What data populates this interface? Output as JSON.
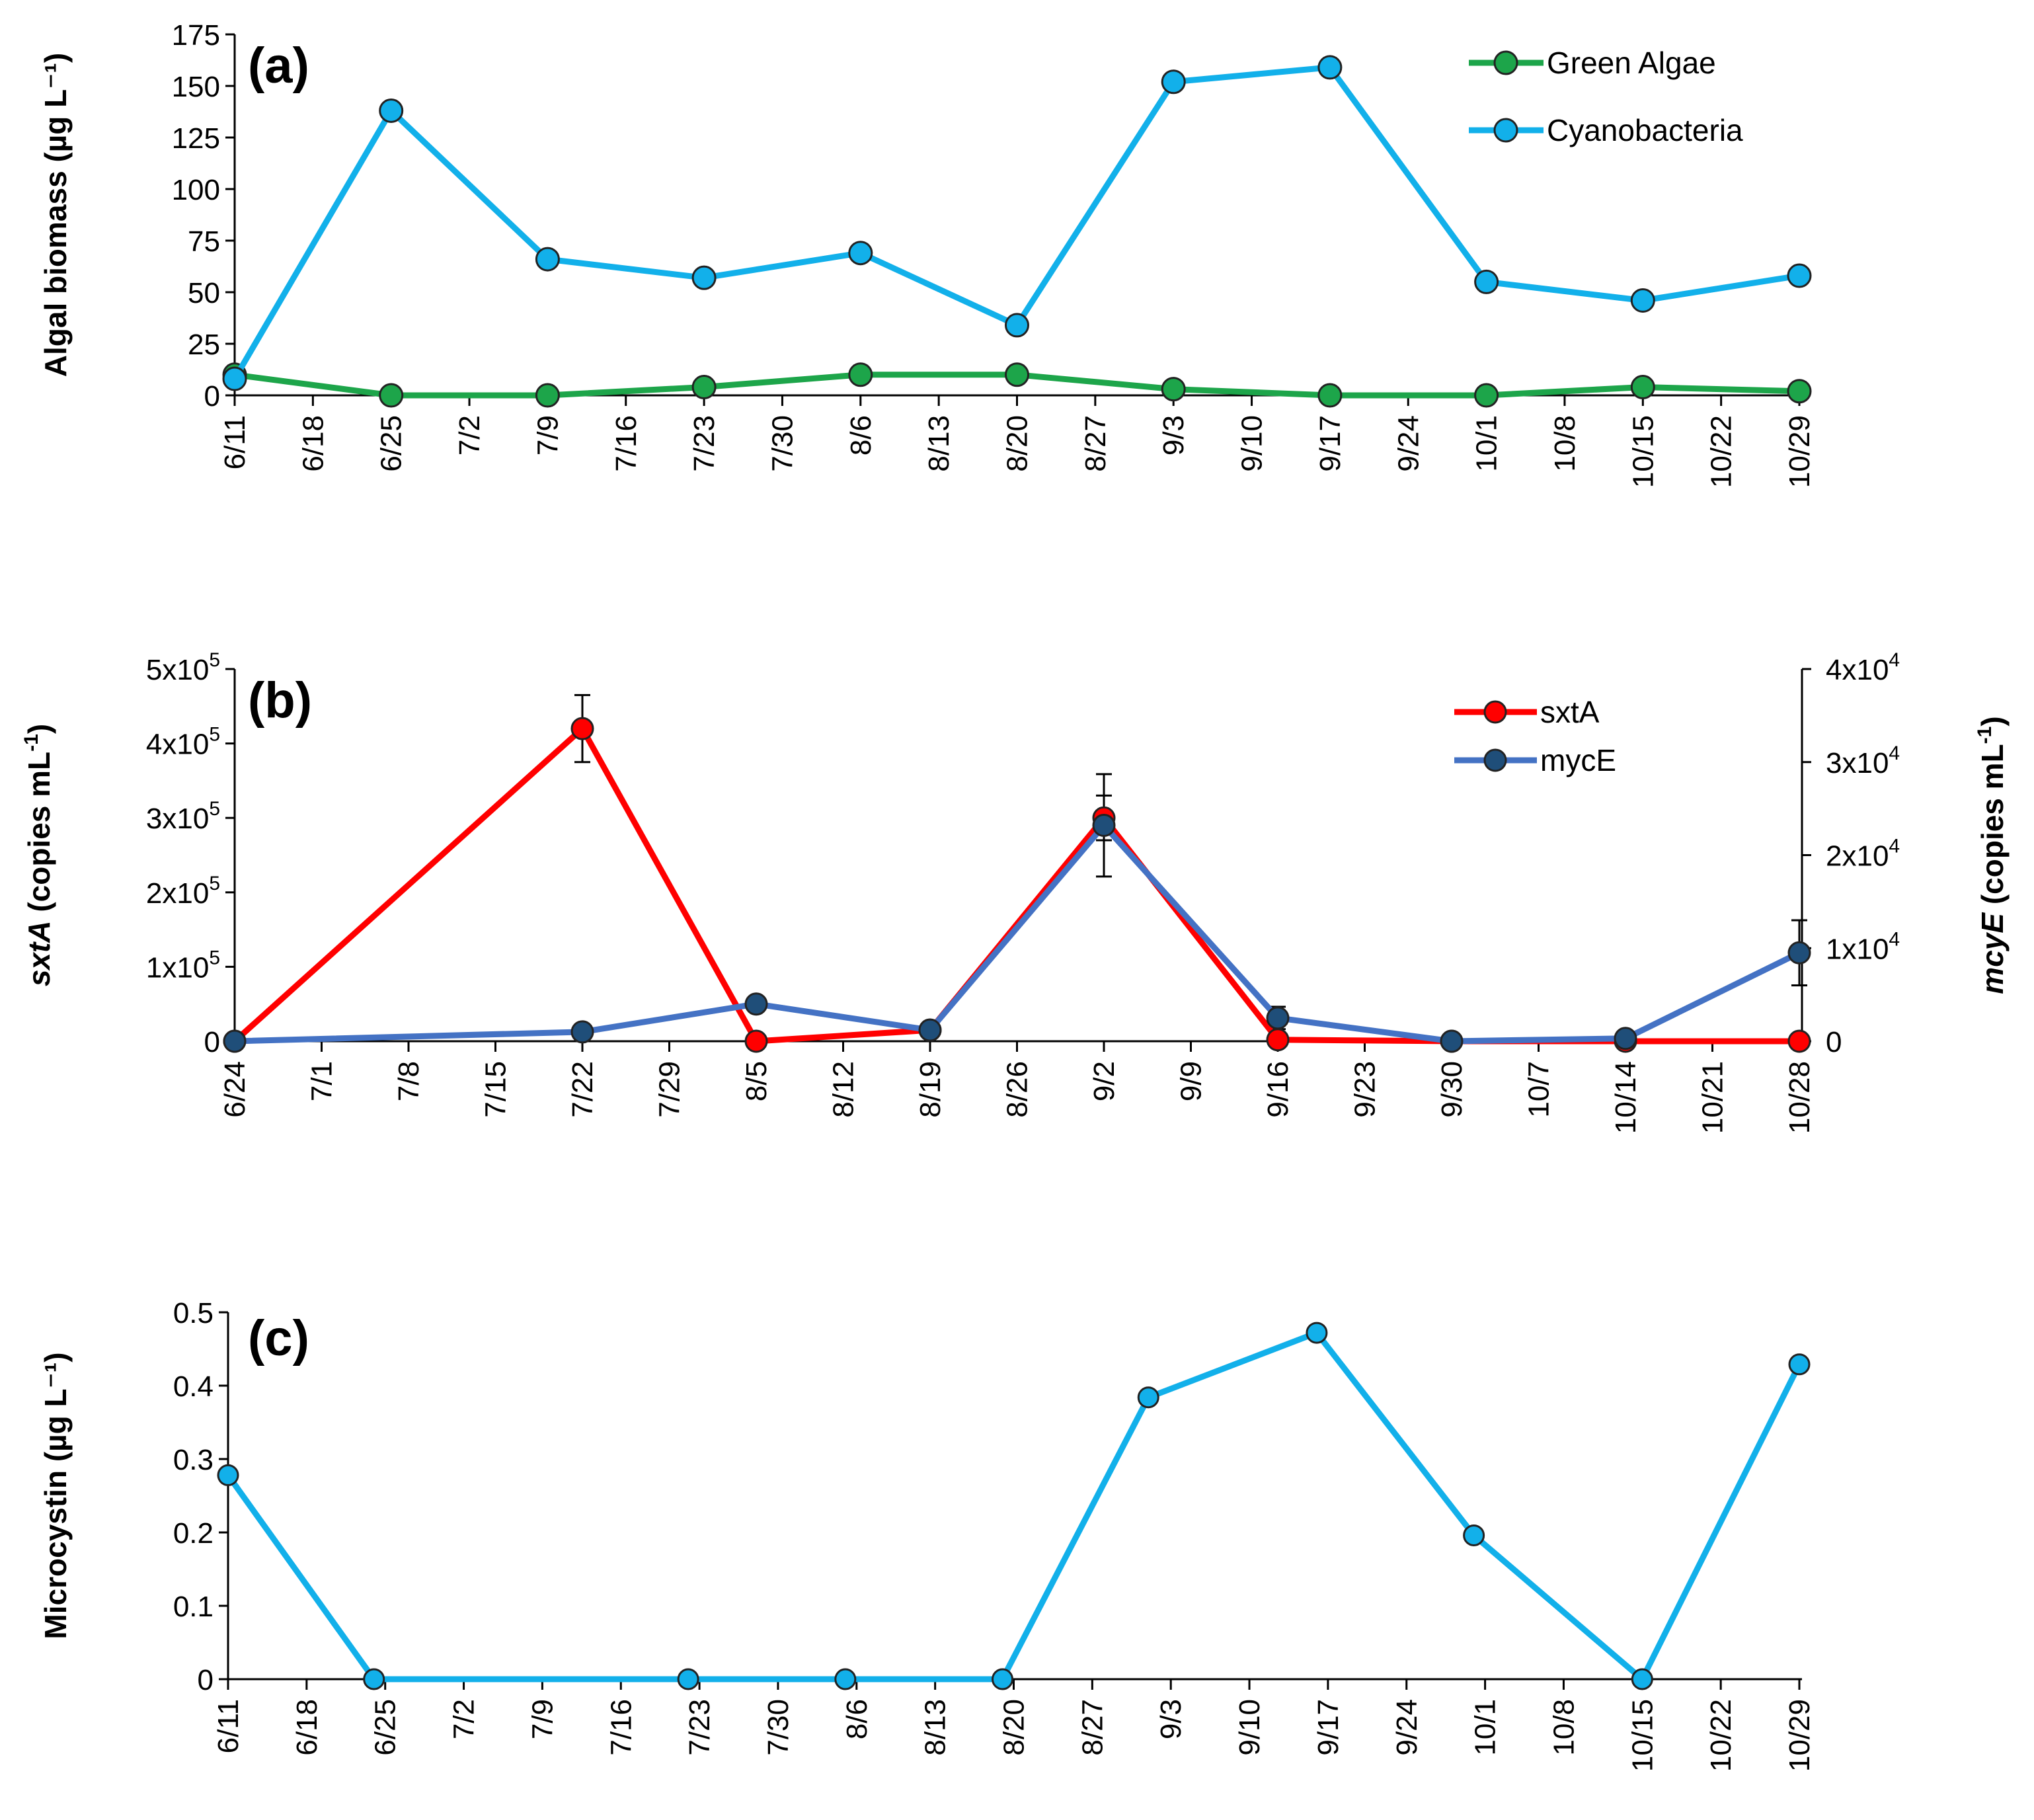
{
  "colors": {
    "green": "#1DA54A",
    "cyan": "#12B0EA",
    "red": "#FF0000",
    "blue": "#4472C4",
    "darkblue": "#1F4E79",
    "axis": "#000000"
  },
  "chart_data": [
    {
      "type": "line",
      "panel": "(a)",
      "ylabel": "Algal biomass (µg L⁻¹)",
      "ylim": [
        0,
        175
      ],
      "yticks": [
        0,
        25,
        50,
        75,
        100,
        125,
        150,
        175
      ],
      "xlim": [
        0,
        140
      ],
      "xticks": [
        {
          "v": 0,
          "label": "6/11"
        },
        {
          "v": 7,
          "label": "6/18"
        },
        {
          "v": 14,
          "label": "6/25"
        },
        {
          "v": 21,
          "label": "7/2"
        },
        {
          "v": 28,
          "label": "7/9"
        },
        {
          "v": 35,
          "label": "7/16"
        },
        {
          "v": 42,
          "label": "7/23"
        },
        {
          "v": 49,
          "label": "7/30"
        },
        {
          "v": 56,
          "label": "8/6"
        },
        {
          "v": 63,
          "label": "8/13"
        },
        {
          "v": 70,
          "label": "8/20"
        },
        {
          "v": 77,
          "label": "8/27"
        },
        {
          "v": 84,
          "label": "9/3"
        },
        {
          "v": 91,
          "label": "9/10"
        },
        {
          "v": 98,
          "label": "9/17"
        },
        {
          "v": 105,
          "label": "9/24"
        },
        {
          "v": 112,
          "label": "10/1"
        },
        {
          "v": 119,
          "label": "10/8"
        },
        {
          "v": 126,
          "label": "10/15"
        },
        {
          "v": 133,
          "label": "10/22"
        },
        {
          "v": 140,
          "label": "10/29"
        }
      ],
      "legend": [
        "Green Algae",
        "Cyanobacteria"
      ],
      "series": [
        {
          "name": "Green Algae",
          "color": "#1DA54A",
          "x": [
            0,
            14,
            28,
            42,
            56,
            70,
            84,
            98,
            112,
            126,
            140
          ],
          "values": [
            10,
            0,
            0,
            4,
            10,
            10,
            3,
            0,
            0,
            4,
            2
          ]
        },
        {
          "name": "Cyanobacteria",
          "color": "#12B0EA",
          "x": [
            0,
            14,
            28,
            42,
            56,
            70,
            84,
            98,
            112,
            126,
            140
          ],
          "values": [
            8,
            138,
            66,
            57,
            69,
            34,
            152,
            159,
            55,
            46,
            58
          ]
        }
      ]
    },
    {
      "type": "line",
      "panel": "(b)",
      "ylabel": "sxtA (copies mL⁻¹)",
      "ylabel_italic": "sxtA",
      "ylabel_rest": " (copies mL",
      "y2label_italic": "mcyE",
      "y2label_rest": " (copies mL",
      "ylim": [
        0,
        500000
      ],
      "yticks": [
        {
          "v": 0,
          "m": "0",
          "e": ""
        },
        {
          "v": 100000,
          "m": "1x10",
          "e": "5"
        },
        {
          "v": 200000,
          "m": "2x10",
          "e": "5"
        },
        {
          "v": 300000,
          "m": "3x10",
          "e": "5"
        },
        {
          "v": 400000,
          "m": "4x10",
          "e": "5"
        },
        {
          "v": 500000,
          "m": "5x10",
          "e": "5"
        }
      ],
      "y2lim": [
        0,
        40000
      ],
      "y2ticks": [
        {
          "v": 0,
          "m": "0",
          "e": ""
        },
        {
          "v": 10000,
          "m": "1x10",
          "e": "4"
        },
        {
          "v": 20000,
          "m": "2x10",
          "e": "4"
        },
        {
          "v": 30000,
          "m": "3x10",
          "e": "4"
        },
        {
          "v": 40000,
          "m": "4x10",
          "e": "4"
        }
      ],
      "xlim": [
        0,
        126
      ],
      "xticks": [
        {
          "v": 0,
          "label": "6/24"
        },
        {
          "v": 7,
          "label": "7/1"
        },
        {
          "v": 14,
          "label": "7/8"
        },
        {
          "v": 21,
          "label": "7/15"
        },
        {
          "v": 28,
          "label": "7/22"
        },
        {
          "v": 35,
          "label": "7/29"
        },
        {
          "v": 42,
          "label": "8/5"
        },
        {
          "v": 49,
          "label": "8/12"
        },
        {
          "v": 56,
          "label": "8/19"
        },
        {
          "v": 63,
          "label": "8/26"
        },
        {
          "v": 70,
          "label": "9/2"
        },
        {
          "v": 77,
          "label": "9/9"
        },
        {
          "v": 84,
          "label": "9/16"
        },
        {
          "v": 91,
          "label": "9/23"
        },
        {
          "v": 98,
          "label": "9/30"
        },
        {
          "v": 105,
          "label": "10/7"
        },
        {
          "v": 112,
          "label": "10/14"
        },
        {
          "v": 119,
          "label": "10/21"
        },
        {
          "v": 126,
          "label": "10/28"
        }
      ],
      "legend": [
        "sxtA",
        "mycE"
      ],
      "series": [
        {
          "name": "sxtA",
          "color": "#FF0000",
          "axis": "left",
          "x": [
            0,
            28,
            42,
            56,
            70,
            84,
            98,
            112,
            126
          ],
          "values": [
            0,
            420000,
            0,
            15000,
            300000,
            2000,
            0,
            0,
            0
          ],
          "err": [
            0,
            45000,
            0,
            0,
            30000,
            0,
            0,
            0,
            0
          ]
        },
        {
          "name": "mycE",
          "color": "#4472C4",
          "axis": "right",
          "x": [
            0,
            28,
            42,
            56,
            70,
            84,
            98,
            112,
            126
          ],
          "values": [
            0,
            1000,
            4000,
            1200,
            23200,
            2500,
            0,
            300,
            9500
          ],
          "err": [
            0,
            0,
            0,
            0,
            5500,
            1200,
            0,
            0,
            3500
          ]
        }
      ]
    },
    {
      "type": "line",
      "panel": "(c)",
      "ylabel": "Microcystin (µg L⁻¹)",
      "ylim": [
        0,
        0.5
      ],
      "yticks": [
        0,
        0.1,
        0.2,
        0.3,
        0.4,
        0.5
      ],
      "xlim": [
        0,
        140
      ],
      "xticks": [
        {
          "v": 0,
          "label": "6/11"
        },
        {
          "v": 7,
          "label": "6/18"
        },
        {
          "v": 14,
          "label": "6/25"
        },
        {
          "v": 21,
          "label": "7/2"
        },
        {
          "v": 28,
          "label": "7/9"
        },
        {
          "v": 35,
          "label": "7/16"
        },
        {
          "v": 42,
          "label": "7/23"
        },
        {
          "v": 49,
          "label": "7/30"
        },
        {
          "v": 56,
          "label": "8/6"
        },
        {
          "v": 63,
          "label": "8/13"
        },
        {
          "v": 70,
          "label": "8/20"
        },
        {
          "v": 77,
          "label": "8/27"
        },
        {
          "v": 84,
          "label": "9/3"
        },
        {
          "v": 91,
          "label": "9/10"
        },
        {
          "v": 98,
          "label": "9/17"
        },
        {
          "v": 105,
          "label": "9/24"
        },
        {
          "v": 112,
          "label": "10/1"
        },
        {
          "v": 119,
          "label": "10/8"
        },
        {
          "v": 126,
          "label": "10/15"
        },
        {
          "v": 133,
          "label": "10/22"
        },
        {
          "v": 140,
          "label": "10/29"
        }
      ],
      "series": [
        {
          "name": "Microcystin",
          "color": "#12B0EA",
          "x": [
            0,
            13,
            41,
            55,
            69,
            82,
            97,
            111,
            126,
            140
          ],
          "values": [
            0.278,
            0,
            0,
            0,
            0,
            0.384,
            0.472,
            0.196,
            0,
            0.429
          ]
        }
      ]
    }
  ]
}
